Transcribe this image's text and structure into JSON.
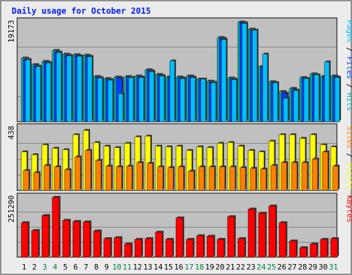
{
  "title": "Daily usage for October 2015",
  "colors": {
    "title": "#001df0",
    "hits": "#00b0b0",
    "files": "#0040ff",
    "pages": "#00c0ff",
    "visits": "#ffff00",
    "sites": "#ff8000",
    "kbytes": "#ff0000",
    "weekday_label": "#000000",
    "weekend_label": "#008040",
    "panel_bg": "#c0c0c0"
  },
  "chart_data": [
    {
      "type": "bar",
      "panel": "hits-files-pages",
      "y_max_label": "19173",
      "ylim": [
        0,
        19173
      ],
      "categories": [
        "1",
        "2",
        "3",
        "4",
        "5",
        "6",
        "7",
        "8",
        "9",
        "10",
        "11",
        "12",
        "13",
        "14",
        "15",
        "16",
        "17",
        "18",
        "19",
        "20",
        "21",
        "22",
        "23",
        "24",
        "25",
        "26",
        "27",
        "28",
        "29",
        "30",
        "31"
      ],
      "weekend_days": [
        "3",
        "4",
        "10",
        "11",
        "17",
        "18",
        "24",
        "25",
        "31"
      ],
      "series": [
        {
          "name": "Hits",
          "values": [
            12250,
            10980,
            11600,
            13700,
            13000,
            12900,
            12800,
            8700,
            8300,
            8600,
            8700,
            8800,
            10000,
            9100,
            8600,
            8600,
            8800,
            8200,
            7800,
            16200,
            8400,
            19173,
            17800,
            10600,
            7700,
            5800,
            6400,
            8500,
            9200,
            8700,
            8800
          ]
        },
        {
          "name": "Files",
          "values": [
            12000,
            10700,
            11400,
            13400,
            12800,
            12700,
            12600,
            8500,
            8100,
            8400,
            8500,
            8600,
            9800,
            8900,
            8400,
            8400,
            8600,
            8000,
            7600,
            16000,
            8200,
            19050,
            17600,
            10400,
            7500,
            5500,
            6100,
            8300,
            9000,
            8500,
            8600
          ]
        },
        {
          "name": "Pages",
          "values": [
            11900,
            10600,
            11300,
            13300,
            12700,
            12600,
            12500,
            8400,
            8000,
            5400,
            8500,
            8500,
            9600,
            8800,
            11700,
            8300,
            8500,
            8200,
            7500,
            15800,
            8100,
            18900,
            17600,
            13000,
            7500,
            4500,
            6000,
            8300,
            9000,
            11500,
            8500
          ]
        }
      ]
    },
    {
      "type": "bar",
      "panel": "visits-sites",
      "y_max_label": "438",
      "ylim": [
        0,
        438
      ],
      "categories": [
        "1",
        "2",
        "3",
        "4",
        "5",
        "6",
        "7",
        "8",
        "9",
        "10",
        "11",
        "12",
        "13",
        "14",
        "15",
        "16",
        "17",
        "18",
        "19",
        "20",
        "21",
        "22",
        "23",
        "24",
        "25",
        "26",
        "27",
        "28",
        "29",
        "30",
        "31"
      ],
      "weekend_days": [
        "3",
        "4",
        "10",
        "11",
        "17",
        "18",
        "24",
        "25",
        "31"
      ],
      "series": [
        {
          "name": "Visits",
          "values": [
            270,
            250,
            320,
            295,
            285,
            390,
            420,
            335,
            310,
            300,
            330,
            375,
            380,
            310,
            305,
            310,
            280,
            305,
            300,
            330,
            335,
            310,
            280,
            270,
            345,
            390,
            390,
            365,
            390,
            320,
            305
          ]
        },
        {
          "name": "Sites",
          "values": [
            140,
            125,
            175,
            165,
            145,
            235,
            280,
            210,
            170,
            165,
            170,
            195,
            190,
            165,
            160,
            165,
            135,
            165,
            165,
            165,
            165,
            160,
            155,
            150,
            175,
            195,
            195,
            195,
            220,
            270,
            170
          ]
        }
      ]
    },
    {
      "type": "bar",
      "panel": "kbytes",
      "y_max_label": "251290",
      "ylim": [
        0,
        251290
      ],
      "categories": [
        "1",
        "2",
        "3",
        "4",
        "5",
        "6",
        "7",
        "8",
        "9",
        "10",
        "11",
        "12",
        "13",
        "14",
        "15",
        "16",
        "17",
        "18",
        "19",
        "20",
        "21",
        "22",
        "23",
        "24",
        "25",
        "26",
        "27",
        "28",
        "29",
        "30",
        "31"
      ],
      "weekend_days": [
        "3",
        "4",
        "10",
        "11",
        "17",
        "18",
        "24",
        "25",
        "31"
      ],
      "series": [
        {
          "name": "KBytes",
          "values": [
            145000,
            112000,
            175000,
            251290,
            155000,
            150000,
            148000,
            110000,
            78000,
            82000,
            55000,
            75000,
            78000,
            105000,
            75000,
            165000,
            75000,
            90000,
            88000,
            75000,
            170000,
            78000,
            202000,
            185000,
            215000,
            145000,
            68000,
            40000,
            55000,
            75000,
            78000
          ]
        }
      ]
    }
  ],
  "side_labels": {
    "top": [
      {
        "text": "Pages",
        "color_key": "pages"
      },
      {
        "text": " / ",
        "color_key": "weekday_label"
      },
      {
        "text": "Files",
        "color_key": "files"
      },
      {
        "text": " / ",
        "color_key": "weekday_label"
      },
      {
        "text": "Hits",
        "color_key": "hits"
      }
    ],
    "mid": [
      {
        "text": "Sites",
        "color_key": "sites"
      },
      {
        "text": " / ",
        "color_key": "weekday_label"
      },
      {
        "text": "Visits",
        "color_key": "visits"
      }
    ],
    "bottom": [
      {
        "text": "KBytes",
        "color_key": "kbytes"
      }
    ]
  }
}
